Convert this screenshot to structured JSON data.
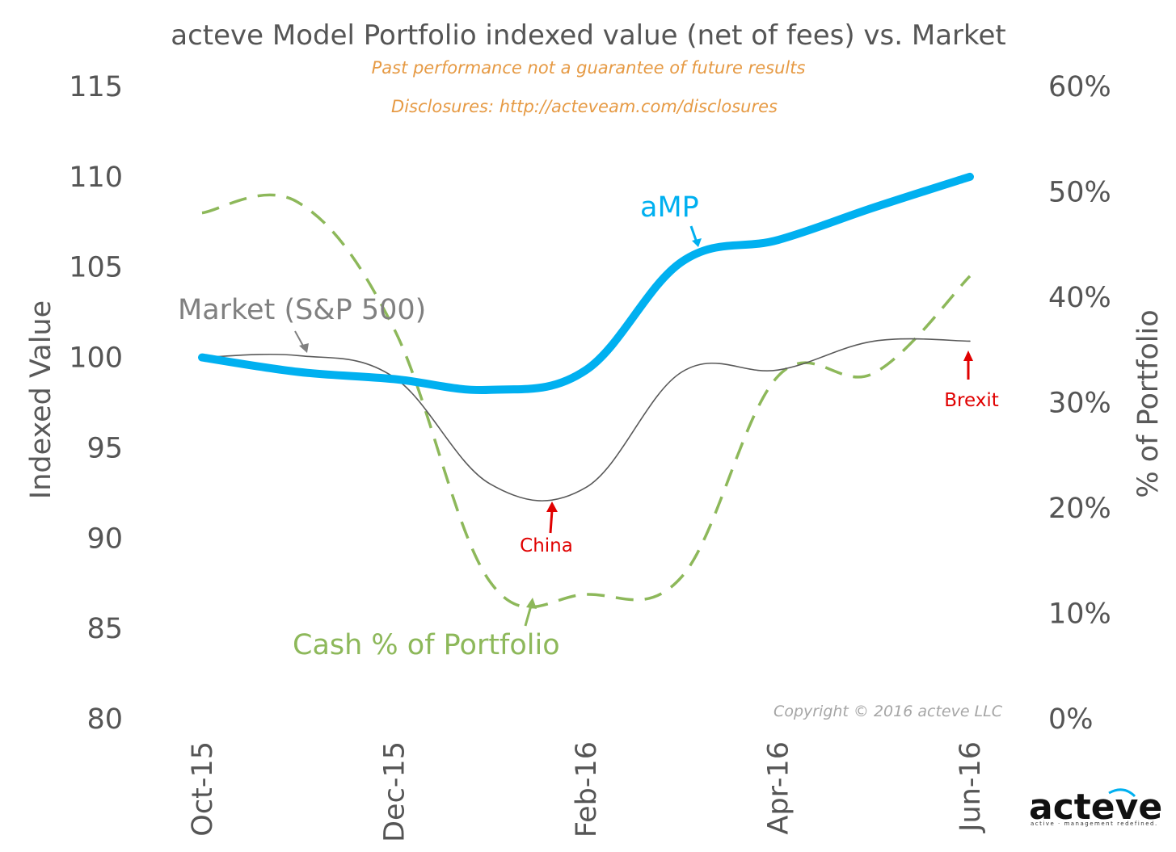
{
  "chart_data": {
    "type": "line",
    "title": "acteve Model Portfolio indexed value (net of fees) vs. Market",
    "subtitle_lines": [
      "Past performance not a guarantee of future results",
      "Disclosures: http://acteveam.com/disclosures"
    ],
    "ylabel": "Indexed Value",
    "y2label": "% of Portfolio",
    "ylim": [
      80,
      115
    ],
    "y2lim": [
      0,
      60
    ],
    "y_ticks": [
      "80",
      "85",
      "90",
      "95",
      "100",
      "105",
      "110",
      "115"
    ],
    "y2_ticks": [
      "0%",
      "10%",
      "20%",
      "30%",
      "40%",
      "50%",
      "60%"
    ],
    "x_ticks": [
      "Oct-15",
      "Dec-15",
      "Feb-16",
      "Apr-16",
      "Jun-16"
    ],
    "x": [
      "Oct-15",
      "Nov-15",
      "Dec-15",
      "Jan-16",
      "Feb-16",
      "Mar-16",
      "Apr-16",
      "May-16",
      "Jun-16"
    ],
    "grid": false,
    "series": [
      {
        "name": "aMP",
        "axis": "left",
        "color": "#00b0f0",
        "style": "thick",
        "values": [
          100.0,
          99.2,
          98.8,
          98.2,
          99.3,
          105.3,
          106.5,
          108.3,
          110.0
        ]
      },
      {
        "name": "Market (S&P 500)",
        "axis": "left",
        "color": "#595959",
        "style": "thin",
        "values": [
          100.0,
          100.1,
          98.9,
          93.0,
          92.8,
          99.2,
          99.3,
          100.9,
          100.9
        ]
      },
      {
        "name": "Cash % of Portfolio",
        "axis": "right",
        "color": "#8db85a",
        "style": "dashed",
        "values": [
          48.0,
          49.0,
          37.0,
          13.0,
          11.8,
          13.5,
          32.5,
          32.8,
          42.0
        ]
      }
    ],
    "annotations": [
      {
        "text": "China",
        "color": "#e00000"
      },
      {
        "text": "Brexit",
        "color": "#e00000"
      }
    ],
    "copyright": "Copyright © 2016 acteve LLC"
  },
  "logo": {
    "wordmark": "acteve",
    "tagline": "active · management redefined."
  }
}
